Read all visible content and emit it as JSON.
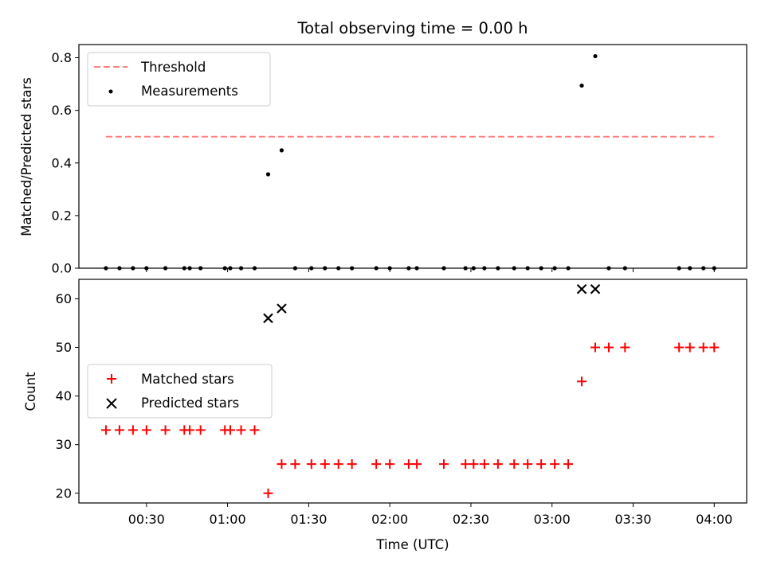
{
  "chart_data": [
    {
      "type": "scatter",
      "title": "Total observing time = 0.00 h",
      "xlabel": "",
      "ylabel": "Matched/Predicted stars",
      "xlim": [
        "00:05",
        "04:12"
      ],
      "ylim": [
        0,
        0.85
      ],
      "yticks": [
        0.0,
        0.2,
        0.4,
        0.6,
        0.8
      ],
      "ytick_labels": [
        "0.0",
        "0.2",
        "0.4",
        "0.6",
        "0.8"
      ],
      "grid": false,
      "legend": {
        "position": "top-left",
        "entries": [
          "Threshold",
          "Measurements"
        ]
      },
      "series": [
        {
          "name": "Threshold",
          "kind": "dashed-line",
          "color": "#ff8080",
          "x": [
            "00:15",
            "04:00"
          ],
          "y": [
            0.5,
            0.5
          ]
        },
        {
          "name": "Measurements",
          "kind": "dot",
          "color": "#000000",
          "x": [
            "00:15",
            "00:20",
            "00:25",
            "00:30",
            "00:37",
            "00:44",
            "00:46",
            "00:50",
            "00:59",
            "01:01",
            "01:05",
            "01:10",
            "01:15",
            "01:20",
            "01:25",
            "01:31",
            "01:36",
            "01:41",
            "01:46",
            "01:55",
            "02:00",
            "02:07",
            "02:10",
            "02:20",
            "02:28",
            "02:31",
            "02:35",
            "02:40",
            "02:46",
            "02:51",
            "02:56",
            "03:01",
            "03:06",
            "03:11",
            "03:16",
            "03:21",
            "03:27",
            "03:47",
            "03:51",
            "03:56",
            "04:00"
          ],
          "y": [
            0,
            0,
            0,
            0,
            0,
            0,
            0,
            0,
            0,
            0,
            0,
            0,
            0.357,
            0.448,
            0,
            0,
            0,
            0,
            0,
            0,
            0,
            0,
            0,
            0,
            0,
            0,
            0,
            0,
            0,
            0,
            0,
            0,
            0,
            0.694,
            0.806,
            0,
            0,
            0,
            0,
            0,
            0
          ]
        }
      ]
    },
    {
      "type": "scatter",
      "title": "",
      "xlabel": "Time (UTC)",
      "ylabel": "Count",
      "xlim": [
        "00:05",
        "04:12"
      ],
      "ylim": [
        18,
        64
      ],
      "yticks": [
        20,
        30,
        40,
        50,
        60
      ],
      "ytick_labels": [
        "20",
        "30",
        "40",
        "50",
        "60"
      ],
      "xticks": [
        "00:30",
        "01:00",
        "01:30",
        "02:00",
        "02:30",
        "03:00",
        "03:30",
        "04:00"
      ],
      "grid": false,
      "legend": {
        "position": "center-left",
        "entries": [
          "Matched stars",
          "Predicted stars"
        ]
      },
      "series": [
        {
          "name": "Matched stars",
          "kind": "plus",
          "color": "#ff0000",
          "x": [
            "00:15",
            "00:20",
            "00:25",
            "00:30",
            "00:37",
            "00:44",
            "00:46",
            "00:50",
            "00:59",
            "01:01",
            "01:05",
            "01:10",
            "01:15",
            "01:20",
            "01:25",
            "01:31",
            "01:36",
            "01:41",
            "01:46",
            "01:55",
            "02:00",
            "02:07",
            "02:10",
            "02:20",
            "02:28",
            "02:31",
            "02:35",
            "02:40",
            "02:46",
            "02:51",
            "02:56",
            "03:01",
            "03:06",
            "03:11",
            "03:16",
            "03:21",
            "03:27",
            "03:47",
            "03:51",
            "03:56",
            "04:00"
          ],
          "y": [
            33,
            33,
            33,
            33,
            33,
            33,
            33,
            33,
            33,
            33,
            33,
            33,
            20,
            26,
            26,
            26,
            26,
            26,
            26,
            26,
            26,
            26,
            26,
            26,
            26,
            26,
            26,
            26,
            26,
            26,
            26,
            26,
            26,
            43,
            50,
            50,
            50,
            50,
            50,
            50,
            50
          ]
        },
        {
          "name": "Predicted stars",
          "kind": "x",
          "color": "#000000",
          "x": [
            "01:15",
            "01:20",
            "03:11",
            "03:16"
          ],
          "y": [
            56,
            58,
            62,
            62
          ]
        }
      ]
    }
  ]
}
